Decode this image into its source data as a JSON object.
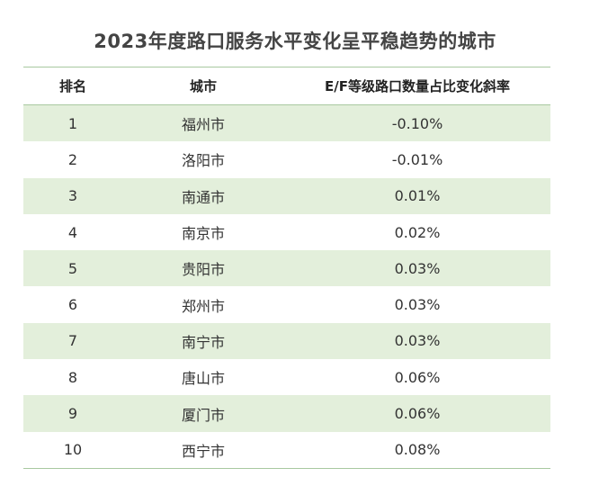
{
  "title": "2023年度路口服务水平变化呈平稳趋势的城市",
  "headers": {
    "rank": "排名",
    "city": "城市",
    "rate": "E/F等级路口数量占比变化斜率"
  },
  "rows": [
    {
      "rank": "1",
      "city": "福州市",
      "rate": "-0.10%"
    },
    {
      "rank": "2",
      "city": "洛阳市",
      "rate": "-0.01%"
    },
    {
      "rank": "3",
      "city": "南通市",
      "rate": "0.01%"
    },
    {
      "rank": "4",
      "city": "南京市",
      "rate": "0.02%"
    },
    {
      "rank": "5",
      "city": "贵阳市",
      "rate": "0.03%"
    },
    {
      "rank": "6",
      "city": "郑州市",
      "rate": "0.03%"
    },
    {
      "rank": "7",
      "city": "南宁市",
      "rate": "0.03%"
    },
    {
      "rank": "8",
      "city": "唐山市",
      "rate": "0.06%"
    },
    {
      "rank": "9",
      "city": "厦门市",
      "rate": "0.06%"
    },
    {
      "rank": "10",
      "city": "西宁市",
      "rate": "0.08%"
    }
  ],
  "colors": {
    "row_shade": "#e3efdb",
    "rule": "#a8c8a0",
    "title": "#444444"
  }
}
